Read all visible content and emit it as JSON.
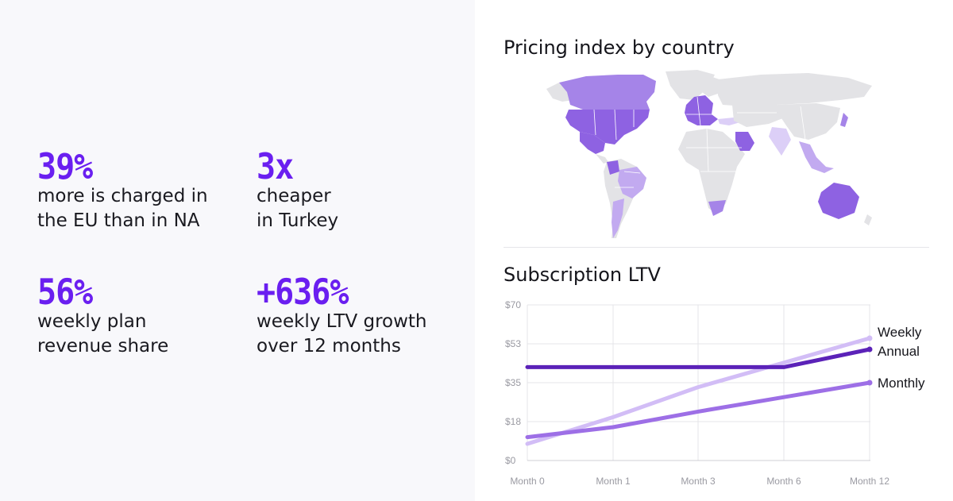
{
  "stats": [
    {
      "value": "39%",
      "lines": [
        "more is charged in",
        "the EU than in NA"
      ]
    },
    {
      "value": "3x",
      "lines": [
        "cheaper",
        "in Turkey"
      ]
    },
    {
      "value": "56%",
      "lines": [
        "weekly plan",
        "revenue share"
      ]
    },
    {
      "value": "+636%",
      "lines": [
        "weekly LTV growth",
        "over 12 months"
      ]
    }
  ],
  "map": {
    "title": "Pricing index by country",
    "colors": {
      "high": "#8e62e2",
      "mid": "#a584e8",
      "low": "#c2aaf0",
      "lowest": "#dccff7",
      "none": "#e3e3e6"
    }
  },
  "chart_data": {
    "type": "line",
    "title": "Subscription LTV",
    "x": [
      "Month 0",
      "Month 1",
      "Month 3",
      "Month 6",
      "Month 12"
    ],
    "y_ticks": [
      "$0",
      "$18",
      "$35",
      "$53",
      "$70"
    ],
    "ylim": [
      0,
      70
    ],
    "grid": true,
    "series": [
      {
        "name": "Weekly",
        "values": [
          7.5,
          19.5,
          33,
          44,
          55
        ],
        "color": "#d2bdf6"
      },
      {
        "name": "Annual",
        "values": [
          42,
          42,
          42,
          42,
          50
        ],
        "color": "#5b22b8"
      },
      {
        "name": "Monthly",
        "values": [
          10.5,
          15,
          22,
          28.5,
          35
        ],
        "color": "#9d6fe6"
      }
    ]
  }
}
